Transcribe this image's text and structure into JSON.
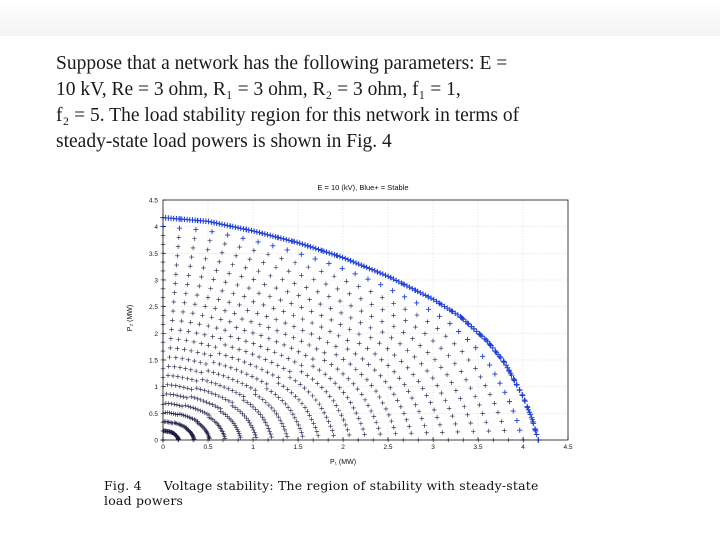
{
  "paragraph": {
    "lines": [
      "Suppose that a network has the following parameters: E =",
      "10 kV, Re = 3 ohm, R₁ = 3 ohm, R₂ = 3 ohm, f₁ = 1,",
      "f₂ = 5. The load stability region for this network in terms of",
      "steady-state load powers is shown in Fig. 4"
    ]
  },
  "chart_data": {
    "type": "scatter",
    "title": "E = 10 (kV), Blue+ = Stable",
    "xlabel": "P₁ (MW)",
    "ylabel": "P₂ (MW)",
    "xlim": [
      0,
      4.5
    ],
    "ylim": [
      0,
      4.5
    ],
    "xticks": [
      "0",
      "0.5",
      "1",
      "1.5",
      "2",
      "2.5",
      "3",
      "3.5",
      "4",
      "4.5"
    ],
    "yticks": [
      "0",
      "0.5",
      "1",
      "1.5",
      "2",
      "2.5",
      "3",
      "3.5",
      "4",
      "4.5"
    ],
    "grid": true,
    "marker": "+",
    "colors": {
      "boundary": "#1f3fd6",
      "interior": "#1a1a44",
      "grid": "#d9d9d9"
    },
    "boundary": [
      [
        0.0,
        4.17
      ],
      [
        0.5,
        4.1
      ],
      [
        1.0,
        3.92
      ],
      [
        1.5,
        3.7
      ],
      [
        2.0,
        3.42
      ],
      [
        2.5,
        3.07
      ],
      [
        3.0,
        2.64
      ],
      [
        3.3,
        2.32
      ],
      [
        3.6,
        1.86
      ],
      [
        3.8,
        1.44
      ],
      [
        4.0,
        0.82
      ],
      [
        4.1,
        0.4
      ],
      [
        4.17,
        0.0
      ]
    ]
  },
  "caption": {
    "label": "Fig. 4",
    "line1": "Voltage stability: The region of stability with steady-state",
    "line2": "load powers"
  }
}
